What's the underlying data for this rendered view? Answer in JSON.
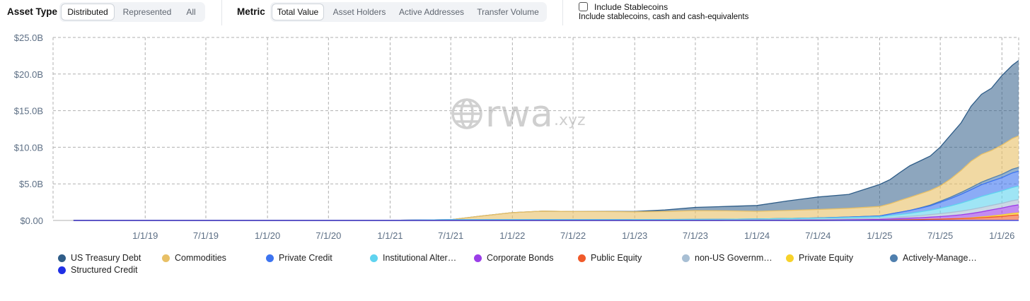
{
  "filters": {
    "asset_type": {
      "label": "Asset Type",
      "options": [
        "Distributed",
        "Represented",
        "All"
      ],
      "selected": "Distributed"
    },
    "metric": {
      "label": "Metric",
      "options": [
        "Total Value",
        "Asset Holders",
        "Active Addresses",
        "Transfer Volume"
      ],
      "selected": "Total Value"
    },
    "stablecoins": {
      "label": "Include Stablecoins",
      "description": "Include stablecoins, cash and cash-equivalents",
      "checked": false
    }
  },
  "watermark": {
    "brand": "rwa",
    "suffix": ".xyz"
  },
  "colors": {
    "us_treasury": "#2f5d88",
    "commodities": "#e8c066",
    "private_credit": "#3d74f0",
    "institutional": "#5fd3ef",
    "corporate_bonds": "#9b3ee8",
    "public_equity": "#f05a2a",
    "non_us_gov": "#a8bfd4",
    "private_equity": "#f7d22a",
    "actively_managed": "#4f7fae",
    "structured_credit": "#1f2fe6",
    "grid": "#b0b0b0",
    "tick": "#5d6f85"
  },
  "chart_data": {
    "type": "area",
    "stacked": true,
    "title": "",
    "xlabel": "",
    "ylabel": "",
    "ylim": [
      0,
      25000000000
    ],
    "xlim": [
      "2018-04-01",
      "2026-02-20"
    ],
    "y_ticks": [
      0,
      5000000000,
      10000000000,
      15000000000,
      20000000000,
      25000000000
    ],
    "y_tick_labels": [
      "$0.00",
      "$5.0B",
      "$10.0B",
      "$15.0B",
      "$20.0B",
      "$25.0B"
    ],
    "x_ticks": [
      "2019-01-01",
      "2019-07-01",
      "2020-01-01",
      "2020-07-01",
      "2021-01-01",
      "2021-07-01",
      "2022-01-01",
      "2022-07-01",
      "2023-01-01",
      "2023-07-01",
      "2024-01-01",
      "2024-07-01",
      "2025-01-01",
      "2025-07-01",
      "2026-01-01"
    ],
    "x_tick_labels": [
      "1/1/19",
      "7/1/19",
      "1/1/20",
      "7/1/20",
      "1/1/21",
      "7/1/21",
      "1/1/22",
      "7/1/22",
      "1/1/23",
      "7/1/23",
      "1/1/24",
      "7/1/24",
      "1/1/25",
      "7/1/25",
      "1/1/26"
    ],
    "grid": true,
    "legend_position": "bottom",
    "x": [
      "2018-06-01",
      "2021-01-01",
      "2021-03-01",
      "2021-07-01",
      "2021-10-01",
      "2022-01-01",
      "2022-04-01",
      "2022-07-01",
      "2022-10-01",
      "2023-01-01",
      "2023-04-01",
      "2023-07-01",
      "2023-10-01",
      "2024-01-01",
      "2024-04-01",
      "2024-07-01",
      "2024-10-01",
      "2025-01-01",
      "2025-02-01",
      "2025-03-01",
      "2025-04-01",
      "2025-05-01",
      "2025-06-01",
      "2025-07-01",
      "2025-08-01",
      "2025-09-01",
      "2025-10-01",
      "2025-11-01",
      "2025-12-01",
      "2026-01-01",
      "2026-02-01",
      "2026-02-20"
    ],
    "series": [
      {
        "name": "Structured Credit",
        "color_key": "structured_credit",
        "values": [
          0,
          0,
          0,
          0,
          0,
          0,
          0,
          0,
          0,
          0,
          0,
          0,
          0,
          0,
          0,
          0,
          0,
          0,
          0,
          0,
          0,
          0,
          0,
          0,
          0,
          0,
          0,
          0,
          0,
          0,
          0,
          0
        ]
      },
      {
        "name": "Public Equity",
        "color_key": "public_equity",
        "values": [
          0,
          0,
          0,
          0,
          0,
          0,
          0,
          0,
          0,
          0,
          0,
          0,
          0,
          0,
          0,
          0,
          0.01,
          0.02,
          0.05,
          0.08,
          0.1,
          0.12,
          0.15,
          0.18,
          0.22,
          0.25,
          0.3,
          0.38,
          0.45,
          0.55,
          0.7,
          0.75
        ]
      },
      {
        "name": "Private Equity",
        "color_key": "private_equity",
        "values": [
          0,
          0,
          0,
          0,
          0,
          0,
          0,
          0,
          0,
          0,
          0,
          0,
          0,
          0,
          0,
          0,
          0,
          0,
          0,
          0,
          0,
          0,
          0,
          0,
          0,
          0.02,
          0.05,
          0.1,
          0.15,
          0.2,
          0.25,
          0.28
        ]
      },
      {
        "name": "Corporate Bonds",
        "color_key": "corporate_bonds",
        "values": [
          0,
          0,
          0,
          0,
          0,
          0,
          0,
          0,
          0,
          0,
          0,
          0,
          0.01,
          0.02,
          0.03,
          0.05,
          0.08,
          0.12,
          0.15,
          0.18,
          0.22,
          0.25,
          0.3,
          0.35,
          0.42,
          0.5,
          0.6,
          0.7,
          0.85,
          0.95,
          1.05,
          1.1
        ]
      },
      {
        "name": "non-US Government Debt",
        "color_key": "non_us_gov",
        "values": [
          0,
          0,
          0,
          0.01,
          0.01,
          0.02,
          0.02,
          0.02,
          0.02,
          0.03,
          0.03,
          0.04,
          0.05,
          0.06,
          0.08,
          0.1,
          0.12,
          0.15,
          0.18,
          0.2,
          0.25,
          0.3,
          0.35,
          0.4,
          0.45,
          0.5,
          0.55,
          0.6,
          0.62,
          0.65,
          0.7,
          0.72
        ]
      },
      {
        "name": "Institutional Alternative Funds",
        "color_key": "institutional",
        "values": [
          0.01,
          0.02,
          0.05,
          0.1,
          0.1,
          0.1,
          0.1,
          0.1,
          0.1,
          0.1,
          0.1,
          0.1,
          0.1,
          0.12,
          0.15,
          0.18,
          0.2,
          0.22,
          0.3,
          0.35,
          0.4,
          0.5,
          0.6,
          0.75,
          0.9,
          1.1,
          1.3,
          1.5,
          1.6,
          1.7,
          1.8,
          1.85
        ]
      },
      {
        "name": "Private Credit",
        "color_key": "private_credit",
        "values": [
          0,
          0,
          0,
          0,
          0,
          0,
          0,
          0,
          0,
          0,
          0,
          0,
          0,
          0,
          0,
          0.02,
          0.05,
          0.1,
          0.2,
          0.3,
          0.4,
          0.5,
          0.6,
          0.8,
          1.0,
          1.2,
          1.4,
          1.6,
          1.7,
          1.8,
          2.0,
          2.05
        ]
      },
      {
        "name": "Actively-Managed Strategies",
        "color_key": "actively_managed",
        "values": [
          0,
          0,
          0,
          0,
          0,
          0,
          0,
          0,
          0,
          0,
          0,
          0,
          0,
          0,
          0,
          0,
          0,
          0,
          0,
          0,
          0,
          0.05,
          0.1,
          0.15,
          0.2,
          0.25,
          0.3,
          0.35,
          0.4,
          0.45,
          0.5,
          0.5
        ]
      },
      {
        "name": "Commodities",
        "color_key": "commodities",
        "values": [
          0,
          0,
          0,
          0,
          0.5,
          0.95,
          1.15,
          1.1,
          1.1,
          1.05,
          1.1,
          1.2,
          1.15,
          1.05,
          1.1,
          1.15,
          1.2,
          1.3,
          1.4,
          1.6,
          1.8,
          1.9,
          2.0,
          2.1,
          2.5,
          3.0,
          3.6,
          3.8,
          3.8,
          4.0,
          4.2,
          4.3
        ]
      },
      {
        "name": "US Treasury Debt",
        "color_key": "us_treasury",
        "values": [
          0,
          0,
          0,
          0,
          0,
          0,
          0,
          0,
          0.02,
          0.05,
          0.2,
          0.45,
          0.6,
          0.8,
          1.3,
          1.7,
          1.9,
          3.0,
          3.3,
          3.8,
          4.3,
          4.5,
          4.7,
          5.3,
          6.0,
          6.5,
          7.5,
          8.2,
          8.5,
          9.5,
          10.0,
          10.3
        ]
      }
    ],
    "units": "USD billions"
  },
  "legend": [
    {
      "label": "US Treasury Debt",
      "color_key": "us_treasury"
    },
    {
      "label": "Commodities",
      "color_key": "commodities"
    },
    {
      "label": "Private Credit",
      "color_key": "private_credit"
    },
    {
      "label": "Institutional Alter…",
      "color_key": "institutional"
    },
    {
      "label": "Corporate Bonds",
      "color_key": "corporate_bonds"
    },
    {
      "label": "Public Equity",
      "color_key": "public_equity"
    },
    {
      "label": "non-US Governm…",
      "color_key": "non_us_gov"
    },
    {
      "label": "Private Equity",
      "color_key": "private_equity"
    },
    {
      "label": "Actively-Manage…",
      "color_key": "actively_managed"
    },
    {
      "label": "Structured Credit",
      "color_key": "structured_credit"
    }
  ]
}
